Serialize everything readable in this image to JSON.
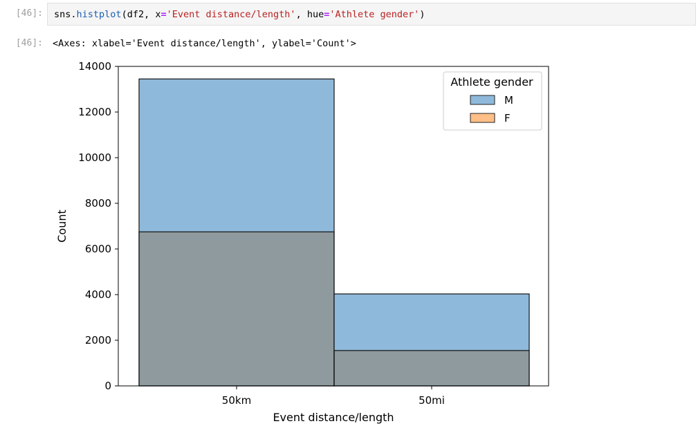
{
  "cell": {
    "in_prompt": "[46]:",
    "out_prompt": "[46]:",
    "code": {
      "obj": "sns",
      "dot": ".",
      "fn": "histplot",
      "args_open": "(df2, ",
      "kw1": "x",
      "eq": "=",
      "str1": "'Event distance/length'",
      "sep": ", ",
      "kw2": "hue",
      "str2": "'Athlete gender'",
      "close": ")"
    },
    "output_text": "<Axes: xlabel='Event distance/length', ylabel='Count'>"
  },
  "colors": {
    "male": "#8fb9da",
    "female": "#ffbf87",
    "overlap": "#8e9a9e"
  },
  "chart_data": {
    "type": "bar",
    "xlabel": "Event distance/length",
    "ylabel": "Count",
    "ylim": [
      0,
      14000
    ],
    "yticks": [
      0,
      2000,
      4000,
      6000,
      8000,
      10000,
      12000,
      14000
    ],
    "categories": [
      "50km",
      "50mi"
    ],
    "series": [
      {
        "name": "M",
        "values": [
          13450,
          4030
        ]
      },
      {
        "name": "F",
        "values": [
          6750,
          1550
        ]
      }
    ],
    "legend": {
      "title": "Athlete gender",
      "placement": "top-right"
    },
    "grid": false
  }
}
